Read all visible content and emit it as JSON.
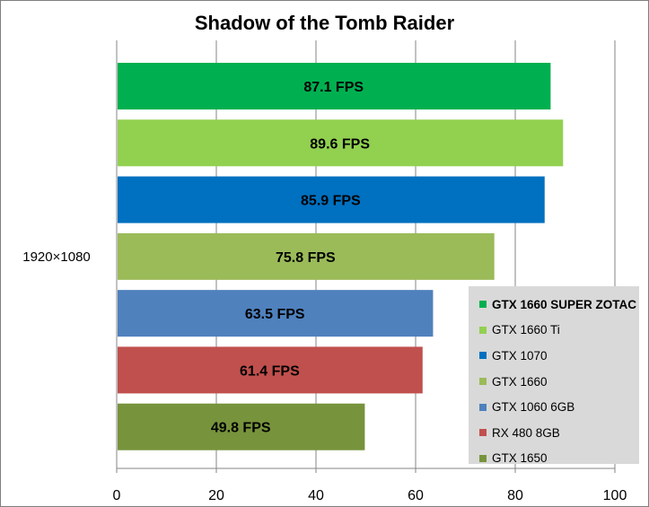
{
  "chart_data": {
    "type": "bar",
    "orientation": "horizontal",
    "title": "Shadow of the Tomb Raider",
    "category": "1920×1080",
    "series": [
      {
        "name": "GTX 1660 SUPER ZOTAC",
        "value": 87.1,
        "label": "87.1 FPS",
        "color": "#00b050"
      },
      {
        "name": "GTX 1660 Ti",
        "value": 89.6,
        "label": "89.6 FPS",
        "color": "#92d050"
      },
      {
        "name": "GTX 1070",
        "value": 85.9,
        "label": "85.9 FPS",
        "color": "#0070c0"
      },
      {
        "name": "GTX 1660",
        "value": 75.8,
        "label": "75.8 FPS",
        "color": "#9bbb59"
      },
      {
        "name": "GTX 1060 6GB",
        "value": 63.5,
        "label": "63.5 FPS",
        "color": "#4f81bd"
      },
      {
        "name": "RX 480 8GB",
        "value": 61.4,
        "label": "61.4 FPS",
        "color": "#c0504d"
      },
      {
        "name": "GTX 1650",
        "value": 49.8,
        "label": "49.8 FPS",
        "color": "#77933c"
      }
    ],
    "xlim": [
      0,
      100
    ],
    "xticks": [
      "0",
      "20",
      "40",
      "60",
      "80",
      "100"
    ],
    "grid": true,
    "legend_position": "bottom-right"
  }
}
